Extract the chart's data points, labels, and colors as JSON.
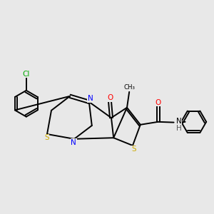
{
  "background_color": "#e8e8e8",
  "bond_color": "#000000",
  "N_color": "#0000ff",
  "S_color": "#ccaa00",
  "O_color": "#ff0000",
  "Cl_color": "#00aa00",
  "H_color": "#555555",
  "figsize": [
    3.0,
    3.0
  ],
  "dpi": 100,
  "lw": 1.4,
  "font_size": 7.5,
  "xlim": [
    0.5,
    8.0
  ],
  "ylim": [
    1.0,
    5.0
  ]
}
